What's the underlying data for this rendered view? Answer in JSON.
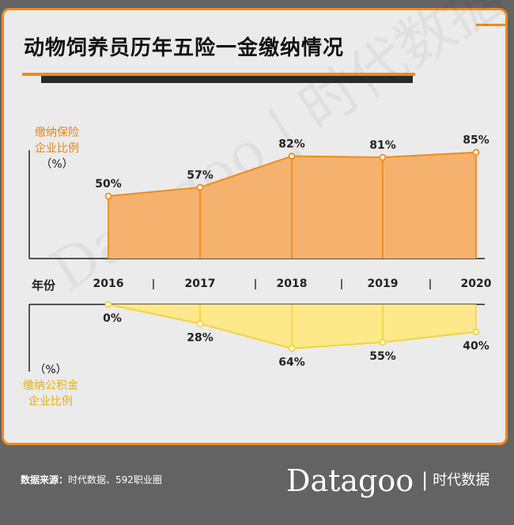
{
  "title": "动物饲养员历年五险一金缴纳情况",
  "top_axis_label": [
    "缴纳保险",
    "企业比例",
    "（%）"
  ],
  "bottom_axis_label": [
    "（%）",
    "缴纳公积金",
    "企业比例"
  ],
  "year_heading": "年份",
  "footer": {
    "source_label": "数据来源：",
    "source_text": "时代数据、592职业圈"
  },
  "logo": {
    "brand": "Datagoo",
    "separator": "|",
    "cn": "时代数据"
  },
  "watermark": "Datagoo | 时代数据",
  "colors": {
    "accent": "#f08a1c",
    "insurance_fill": "#f4b26e",
    "fund_fill": "#fde98a",
    "fund_line": "#f2d43a",
    "footer_bg": "#636363"
  },
  "chart_data": [
    {
      "type": "area",
      "categories": [
        "2016",
        "2017",
        "2018",
        "2019",
        "2020"
      ],
      "values": [
        50,
        57,
        82,
        81,
        85
      ],
      "value_labels": [
        "50%",
        "57%",
        "82%",
        "81%",
        "85%"
      ],
      "ylabel": "缴纳保险企业比例（%）",
      "xlabel": "年份"
    },
    {
      "type": "area",
      "categories": [
        "2016",
        "2017",
        "2018",
        "2019",
        "2020"
      ],
      "values": [
        0,
        28,
        64,
        55,
        40
      ],
      "value_labels": [
        "0%",
        "28%",
        "64%",
        "55%",
        "40%"
      ],
      "ylabel": "缴纳公积金企业比例（%）",
      "xlabel": "年份"
    }
  ]
}
